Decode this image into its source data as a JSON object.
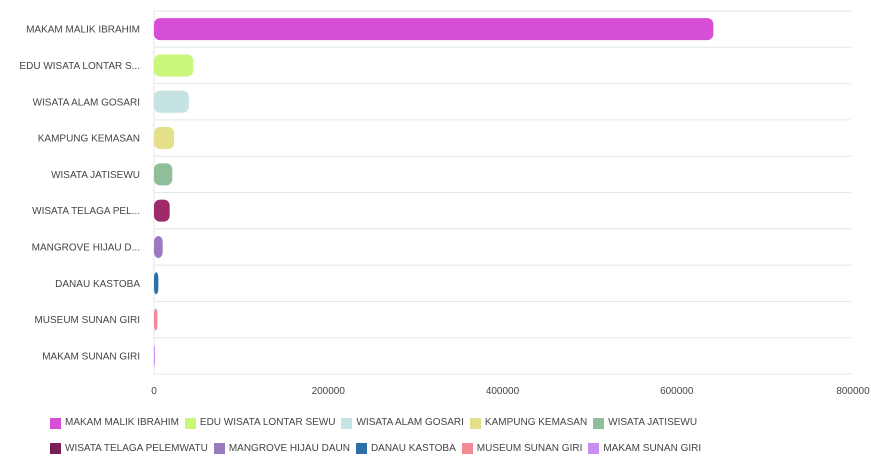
{
  "chart_data": {
    "type": "bar",
    "orientation": "horizontal",
    "categories": [
      "MAKAM MALIK IBRAHIM",
      "EDU WISATA LONTAR S...",
      "WISATA ALAM GOSARI",
      "KAMPUNG KEMASAN",
      "WISATA JATISEWU",
      "WISATA TELAGA PEL...",
      "MANGROVE HIJAU D...",
      "DANAU KASTOBA",
      "MUSEUM SUNAN GIRI",
      "MAKAM SUNAN GIRI"
    ],
    "values": [
      642000,
      45000,
      40000,
      23000,
      21000,
      18000,
      10000,
      5000,
      4000,
      500
    ],
    "colors": [
      "#d64fd6",
      "#c9f77a",
      "#c6e3e3",
      "#e3df8a",
      "#8fbf9a",
      "#9e2a6a",
      "#9a7bbf",
      "#2f6fa6",
      "#f28a96",
      "#c98ff0"
    ],
    "xlim": [
      0,
      800000
    ],
    "xticks": [
      "0",
      "200000",
      "400000",
      "600000",
      "800000"
    ],
    "legend": [
      {
        "label": "MAKAM MALIK IBRAHIM",
        "color": "#d64fd6"
      },
      {
        "label": "EDU WISATA LONTAR SEWU",
        "color": "#c9f77a"
      },
      {
        "label": "WISATA ALAM GOSARI",
        "color": "#c6e3e3"
      },
      {
        "label": "KAMPUNG KEMASAN",
        "color": "#e3df8a"
      },
      {
        "label": "WISATA JATISEWU",
        "color": "#8fbf9a"
      },
      {
        "label": "WISATA TELAGA PELEMWATU",
        "color": "#7a1f55"
      },
      {
        "label": "MANGROVE HIJAU DAUN",
        "color": "#9a7bbf"
      },
      {
        "label": "DANAU KASTOBA",
        "color": "#2f6fa6"
      },
      {
        "label": "MUSEUM SUNAN GIRI",
        "color": "#f28a96"
      },
      {
        "label": "MAKAM SUNAN GIRI",
        "color": "#c98ff0"
      }
    ],
    "legend_position": "bottom",
    "grid": true
  }
}
